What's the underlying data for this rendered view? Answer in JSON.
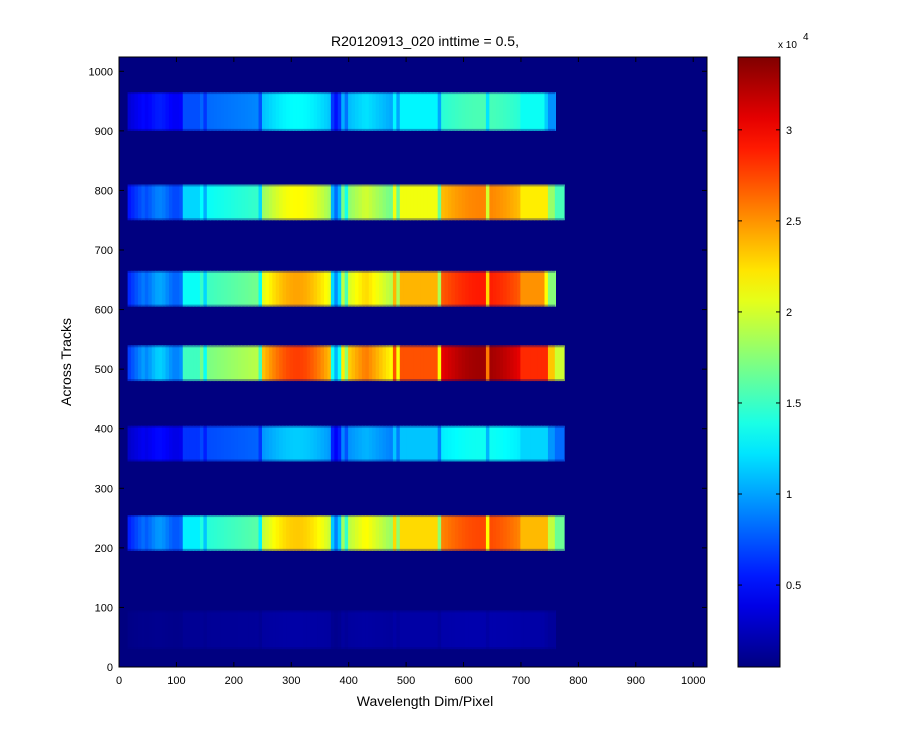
{
  "chart_data": {
    "type": "heatmap",
    "title": "R20120913_020 inttime = 0.5,",
    "xlabel": "Wavelength Dim/Pixel",
    "ylabel": "Across Tracks",
    "xlim": [
      0,
      1024
    ],
    "ylim": [
      0,
      1024
    ],
    "x_ticks": [
      "0",
      "100",
      "200",
      "300",
      "400",
      "500",
      "600",
      "700",
      "800",
      "900",
      "1000"
    ],
    "y_ticks": [
      "0",
      "100",
      "200",
      "300",
      "400",
      "500",
      "600",
      "700",
      "800",
      "900",
      "1000"
    ],
    "colormap": "jet",
    "colorbar": {
      "range": [
        0.05,
        3.4
      ],
      "ticks": [
        "0.5",
        "1",
        "1.5",
        "2",
        "2.5",
        "3"
      ],
      "exponent_base": "x 10",
      "exponent": "4"
    },
    "background_value": 0.05,
    "spectral_band_x": [
      15,
      775
    ],
    "tracks": [
      {
        "y_range": [
          900,
          965
        ],
        "peak": 1.55,
        "x_end": 760
      },
      {
        "y_range": [
          750,
          810
        ],
        "peak": 2.55,
        "x_end": 775
      },
      {
        "y_range": [
          605,
          665
        ],
        "peak": 2.9,
        "x_end": 760
      },
      {
        "y_range": [
          480,
          540
        ],
        "peak": 3.3,
        "x_end": 775
      },
      {
        "y_range": [
          345,
          405
        ],
        "peak": 1.35,
        "x_end": 775
      },
      {
        "y_range": [
          195,
          255
        ],
        "peak": 2.75,
        "x_end": 775
      },
      {
        "y_range": [
          30,
          95
        ],
        "peak": 0.2,
        "x_end": 760
      }
    ]
  }
}
